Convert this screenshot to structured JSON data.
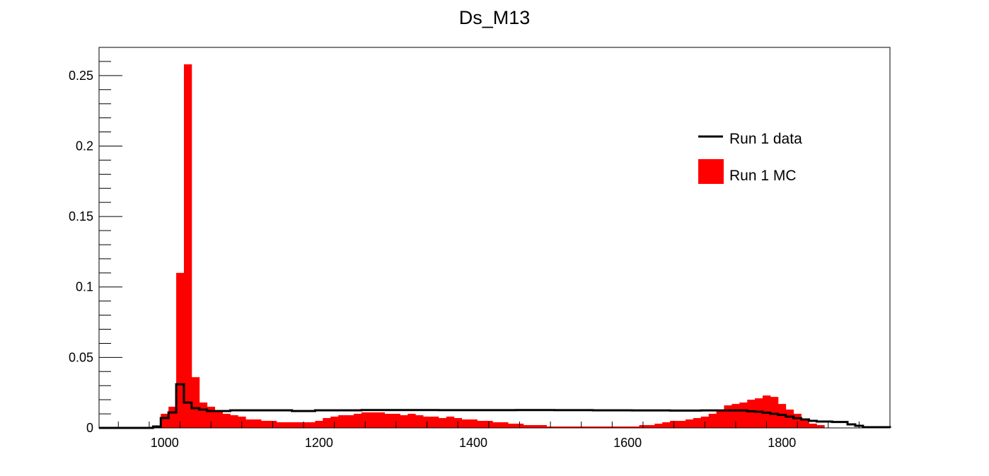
{
  "chart_data": {
    "type": "histogram",
    "title": "Ds_M13",
    "xlabel": "",
    "ylabel": "",
    "xlim": [
      915,
      1940
    ],
    "ylim": [
      0,
      0.27
    ],
    "bin_width": 10,
    "x_ticks": [
      1000,
      1200,
      1400,
      1600,
      1800
    ],
    "x_tick_labels": [
      "1000",
      "1200",
      "1400",
      "1600",
      "1800"
    ],
    "y_ticks": [
      0,
      0.05,
      0.1,
      0.15,
      0.2,
      0.25
    ],
    "y_tick_labels": [
      "0",
      "0.05",
      "0.1",
      "0.15",
      "0.2",
      "0.25"
    ],
    "grid": false,
    "legend_position": "top-right",
    "series": [
      {
        "name": "Run 1 MC",
        "style": "filled",
        "color": "#ff0000",
        "bin_starts": [
          985,
          995,
          1005,
          1015,
          1025,
          1035,
          1045,
          1055,
          1065,
          1075,
          1085,
          1095,
          1105,
          1115,
          1125,
          1135,
          1145,
          1155,
          1165,
          1175,
          1185,
          1195,
          1205,
          1215,
          1225,
          1235,
          1245,
          1255,
          1265,
          1275,
          1285,
          1295,
          1305,
          1315,
          1325,
          1335,
          1345,
          1355,
          1365,
          1375,
          1385,
          1395,
          1405,
          1415,
          1425,
          1435,
          1445,
          1455,
          1465,
          1475,
          1485,
          1495,
          1505,
          1515,
          1525,
          1535,
          1545,
          1555,
          1565,
          1575,
          1585,
          1595,
          1605,
          1615,
          1625,
          1635,
          1645,
          1655,
          1665,
          1675,
          1685,
          1695,
          1705,
          1715,
          1725,
          1735,
          1745,
          1755,
          1765,
          1775,
          1785,
          1795,
          1805,
          1815,
          1825,
          1835,
          1845
        ],
        "values": [
          0.001,
          0.01,
          0.015,
          0.11,
          0.258,
          0.036,
          0.018,
          0.015,
          0.012,
          0.01,
          0.009,
          0.008,
          0.006,
          0.006,
          0.005,
          0.005,
          0.004,
          0.004,
          0.004,
          0.004,
          0.004,
          0.005,
          0.007,
          0.008,
          0.009,
          0.009,
          0.01,
          0.011,
          0.011,
          0.011,
          0.01,
          0.01,
          0.009,
          0.01,
          0.009,
          0.008,
          0.008,
          0.007,
          0.008,
          0.007,
          0.006,
          0.006,
          0.005,
          0.005,
          0.004,
          0.004,
          0.003,
          0.003,
          0.002,
          0.002,
          0.002,
          0.001,
          0.001,
          0.001,
          0.001,
          0.001,
          0.001,
          0.001,
          0.001,
          0.001,
          0.001,
          0.001,
          0.001,
          0.002,
          0.002,
          0.003,
          0.004,
          0.005,
          0.005,
          0.006,
          0.007,
          0.008,
          0.01,
          0.013,
          0.016,
          0.017,
          0.018,
          0.02,
          0.021,
          0.023,
          0.022,
          0.017,
          0.013,
          0.01,
          0.006,
          0.003,
          0.002
        ]
      },
      {
        "name": "Run 1 data",
        "style": "line",
        "color": "#000000",
        "step_x": [
          915,
          985,
          995,
          1005,
          1015,
          1025,
          1035,
          1045,
          1055,
          1065,
          1085,
          1105,
          1125,
          1165,
          1195,
          1255,
          1305,
          1355,
          1405,
          1455,
          1505,
          1555,
          1605,
          1655,
          1695,
          1735,
          1755,
          1765,
          1775,
          1785,
          1795,
          1805,
          1815,
          1825,
          1835,
          1845,
          1865,
          1885,
          1895,
          1905,
          1940
        ],
        "step_y": [
          0.0,
          0.001,
          0.007,
          0.011,
          0.031,
          0.018,
          0.014,
          0.013,
          0.012,
          0.012,
          0.0125,
          0.0125,
          0.0125,
          0.012,
          0.0125,
          0.0127,
          0.0127,
          0.0126,
          0.0126,
          0.0127,
          0.0126,
          0.0125,
          0.0124,
          0.0123,
          0.0124,
          0.0124,
          0.0118,
          0.0115,
          0.0108,
          0.01,
          0.0092,
          0.008,
          0.0069,
          0.006,
          0.005,
          0.0045,
          0.0042,
          0.0025,
          0.0015,
          0.0005,
          0.0
        ]
      }
    ]
  }
}
